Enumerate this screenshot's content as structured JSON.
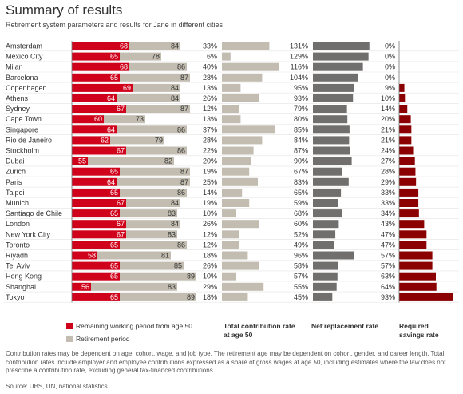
{
  "title": "Summary of results",
  "subtitle": "Retirement system parameters and results for Jane in different cities",
  "legend": {
    "remaining": "Remaining working period from age 50",
    "retirement": "Retirement period"
  },
  "column_labels": {
    "contribution": "Total contribution rate at age 50",
    "replacement": "Net replacement rate",
    "savings": "Required savings rate"
  },
  "colors": {
    "working": "#d0021b",
    "retirement": "#c2bdb0",
    "contribution": "#c2bdb0",
    "replacement": "#716f6d",
    "savings": "#8b0000"
  },
  "note": "Contribution rates may be dependent on age, cohort, wage, and job type. The retirement age may be dependent on cohort, gender, and career length. Total contribution rates include employer and employee contributions expressed as a share of gross wages at age 50, including estimates where the law does not prescribe a contribution rate, excluding general tax-financed contributions.",
  "source": "Source: UBS, UN, national statistics",
  "chart_data": {
    "type": "bar",
    "categories": [
      "Amsterdam",
      "Mexico City",
      "Milan",
      "Barcelona",
      "Copenhagen",
      "Athens",
      "Sydney",
      "Cape Town",
      "Singapore",
      "Rio de Janeiro",
      "Stockholm",
      "Dubai",
      "Zurich",
      "Paris",
      "Taipei",
      "Munich",
      "Santiago de Chile",
      "London",
      "New York City",
      "Toronto",
      "Riyadh",
      "Tel Aviv",
      "Hong Kong",
      "Shanghai",
      "Tokyo"
    ],
    "retirement_age": [
      68,
      65,
      68,
      65,
      69,
      64,
      67,
      60,
      64,
      62,
      67,
      55,
      65,
      64,
      65,
      67,
      65,
      67,
      67,
      65,
      58,
      65,
      65,
      56,
      65
    ],
    "end_age": [
      84,
      78,
      86,
      87,
      84,
      84,
      87,
      73,
      86,
      79,
      86,
      82,
      87,
      87,
      86,
      84,
      83,
      84,
      83,
      86,
      81,
      85,
      89,
      83,
      89
    ],
    "contribution_rate": [
      "33%",
      "6%",
      "40%",
      "28%",
      "13%",
      "26%",
      "12%",
      "13%",
      "37%",
      "28%",
      "22%",
      "20%",
      "19%",
      "25%",
      "14%",
      "19%",
      "10%",
      "26%",
      "12%",
      "12%",
      "18%",
      "26%",
      "10%",
      "29%",
      "18%"
    ],
    "replacement_rate": [
      "131%",
      "129%",
      "116%",
      "104%",
      "95%",
      "93%",
      "79%",
      "80%",
      "85%",
      "84%",
      "87%",
      "90%",
      "67%",
      "83%",
      "65%",
      "59%",
      "68%",
      "60%",
      "52%",
      "49%",
      "96%",
      "58%",
      "57%",
      "55%",
      "45%"
    ],
    "savings_rate": [
      "0%",
      "0%",
      "0%",
      "0%",
      "9%",
      "10%",
      "14%",
      "20%",
      "21%",
      "21%",
      "24%",
      "27%",
      "28%",
      "29%",
      "33%",
      "33%",
      "34%",
      "43%",
      "47%",
      "47%",
      "57%",
      "57%",
      "63%",
      "64%",
      "93%"
    ]
  }
}
